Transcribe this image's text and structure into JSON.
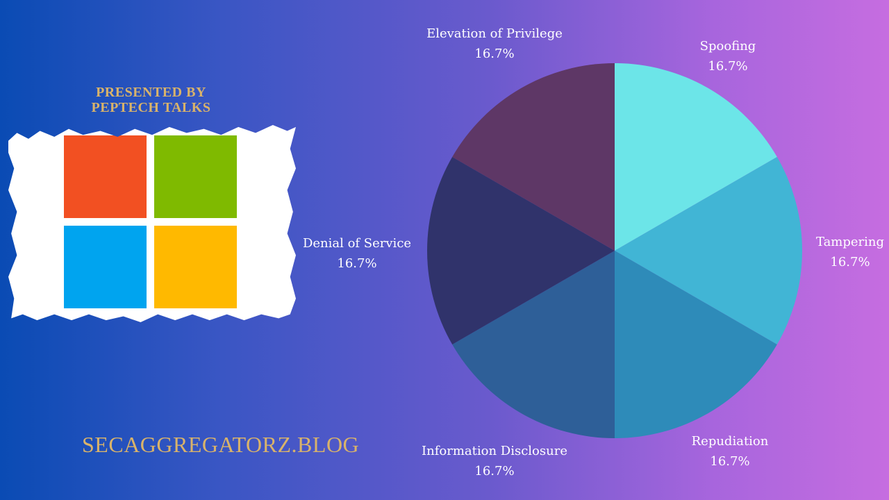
{
  "branding": {
    "presented_line1": "PRESENTED BY",
    "presented_line2": "PEPTECH TALKS",
    "blog": "SECAGGREGATORZ.BLOG",
    "logo_colors": [
      "#f25022",
      "#7fba00",
      "#00a4ef",
      "#ffb900"
    ],
    "accent_color": "#d9b36a"
  },
  "chart_data": {
    "type": "pie",
    "title": "",
    "legend": "none",
    "categories": [
      "Spoofing",
      "Tampering",
      "Repudiation",
      "Information Disclosure",
      "Denial of Service",
      "Elevation of Privilege"
    ],
    "values": [
      16.7,
      16.7,
      16.7,
      16.7,
      16.7,
      16.7
    ],
    "value_labels": [
      "16.7%",
      "16.7%",
      "16.7%",
      "16.7%",
      "16.7%",
      "16.7%"
    ],
    "colors": [
      "#6ce5e8",
      "#41b5d5",
      "#2e8bb9",
      "#2e5f98",
      "#30336b",
      "#5e3766"
    ]
  }
}
